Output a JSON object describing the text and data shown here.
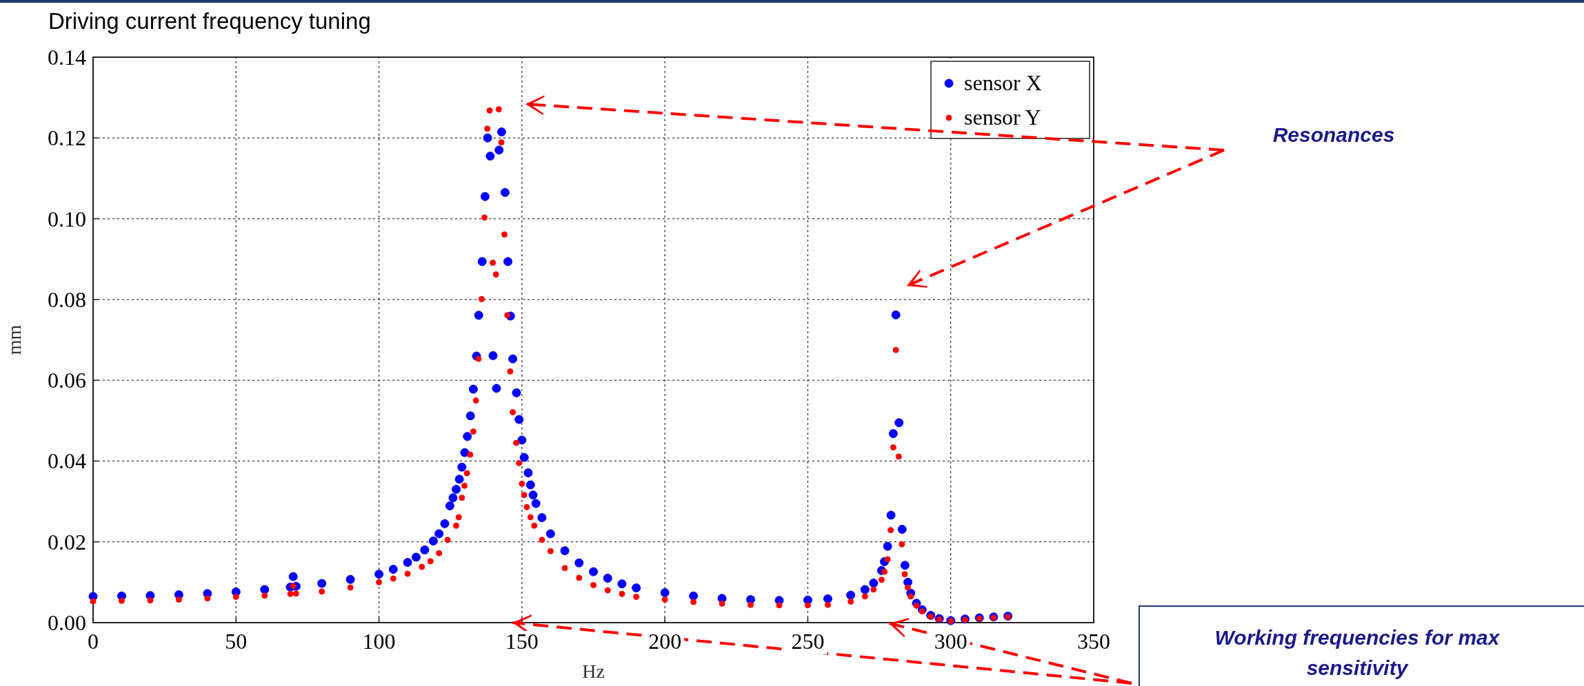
{
  "chart_data": {
    "type": "scatter",
    "title": "Driving current frequency tuning",
    "xlabel": "Hz",
    "ylabel": "mm",
    "xlim": [
      0,
      350
    ],
    "xticks": [
      0,
      50,
      100,
      150,
      200,
      250,
      300,
      350
    ],
    "ylim": [
      0,
      0.14
    ],
    "yticks": [
      {
        "value": 0,
        "label": "0.00"
      },
      {
        "value": 0.02,
        "label": "0.02"
      },
      {
        "value": 0.04,
        "label": "0.04"
      },
      {
        "value": 0.06,
        "label": "0.06"
      },
      {
        "value": 0.08,
        "label": "0.08"
      },
      {
        "value": 0.1,
        "label": "0.10"
      },
      {
        "value": 0.12,
        "label": "0.12"
      },
      {
        "value": 0.14,
        "label": "0.14"
      }
    ],
    "grid": true,
    "legend": "top right",
    "marker": "circle",
    "annotations": [
      "Resonances",
      "Working frequencies for max sensitivity"
    ],
    "series": [
      {
        "name": "sensor X",
        "color": "#0000ff",
        "x": [
          0,
          10,
          20,
          30,
          40,
          50,
          60,
          69,
          70,
          71,
          80,
          90,
          100,
          105,
          110,
          113,
          116,
          119,
          121,
          123,
          124.8,
          125.9,
          127,
          128.1,
          129,
          130,
          130.9,
          132,
          133,
          134.1,
          134.9,
          136.1,
          137.1,
          138,
          138.9,
          139.9,
          141.1,
          142,
          142.9,
          144.1,
          145.1,
          146,
          146.8,
          148.1,
          149,
          150,
          150.8,
          152.2,
          153,
          153.9,
          154.9,
          157,
          160,
          165,
          170,
          175,
          180,
          185,
          190,
          200,
          210,
          220,
          230,
          240,
          250,
          257,
          265,
          270,
          273,
          275.8,
          276.8,
          277.9,
          279.1,
          279.9,
          280.8,
          281.9,
          283,
          284,
          285,
          286,
          288,
          290,
          293,
          296,
          300,
          305,
          310,
          315,
          320
        ],
        "values": [
          0.0065,
          0.0066,
          0.0067,
          0.0069,
          0.0072,
          0.0076,
          0.0082,
          0.0088,
          0.0114,
          0.009,
          0.0097,
          0.0107,
          0.012,
          0.0132,
          0.0149,
          0.0162,
          0.018,
          0.0202,
          0.022,
          0.0245,
          0.0289,
          0.0309,
          0.033,
          0.0355,
          0.0385,
          0.0421,
          0.0461,
          0.0512,
          0.0578,
          0.066,
          0.0761,
          0.0894,
          0.1055,
          0.12,
          0.1155,
          0.0661,
          0.058,
          0.117,
          0.1215,
          0.1065,
          0.0894,
          0.0759,
          0.0653,
          0.0569,
          0.0503,
          0.0452,
          0.0409,
          0.0371,
          0.0341,
          0.0316,
          0.0295,
          0.026,
          0.022,
          0.0178,
          0.0148,
          0.0126,
          0.011,
          0.0096,
          0.0086,
          0.0074,
          0.0066,
          0.006,
          0.0057,
          0.0055,
          0.0056,
          0.0059,
          0.0068,
          0.0082,
          0.0098,
          0.0129,
          0.0151,
          0.0189,
          0.0266,
          0.0468,
          0.0762,
          0.0495,
          0.0231,
          0.0142,
          0.01,
          0.0073,
          0.0048,
          0.0032,
          0.0018,
          0.001,
          0.0005,
          0.0009,
          0.0012,
          0.0014,
          0.0016
        ]
      },
      {
        "name": "sensor Y",
        "color": "#ff0000",
        "x": [
          0,
          10,
          20,
          30,
          40,
          50,
          60,
          69,
          70,
          71,
          80,
          90,
          100,
          105,
          110,
          115,
          118,
          121,
          124,
          127,
          127.9,
          129,
          129.9,
          130.8,
          131.9,
          133,
          133.9,
          134.8,
          135.9,
          136.9,
          137.9,
          138.7,
          139.8,
          140.9,
          141.9,
          142.8,
          143.9,
          144.9,
          145.9,
          146.8,
          148,
          149,
          150,
          150.8,
          151.7,
          153,
          154.3,
          157,
          160,
          165,
          170,
          175,
          180,
          185,
          190,
          200,
          210,
          220,
          230,
          240,
          250,
          257,
          265,
          270,
          273,
          275.8,
          276.8,
          277.9,
          279,
          279.9,
          280.8,
          281.8,
          282.9,
          283.9,
          285,
          286,
          288,
          290,
          293,
          296,
          300,
          305,
          310,
          315,
          320
        ],
        "values": [
          0.0053,
          0.0054,
          0.0055,
          0.0057,
          0.006,
          0.0064,
          0.0067,
          0.0071,
          0.0091,
          0.0072,
          0.0077,
          0.0087,
          0.01,
          0.0109,
          0.0121,
          0.0138,
          0.0152,
          0.0172,
          0.0205,
          0.024,
          0.0261,
          0.0309,
          0.0339,
          0.037,
          0.0416,
          0.0473,
          0.055,
          0.0653,
          0.0801,
          0.1003,
          0.1223,
          0.1268,
          0.0891,
          0.0862,
          0.1271,
          0.1189,
          0.0961,
          0.0761,
          0.0622,
          0.0521,
          0.0445,
          0.0395,
          0.0344,
          0.0316,
          0.0286,
          0.0261,
          0.024,
          0.0205,
          0.0177,
          0.0135,
          0.0111,
          0.0093,
          0.008,
          0.0071,
          0.0064,
          0.0057,
          0.0051,
          0.0047,
          0.0044,
          0.0043,
          0.0043,
          0.0044,
          0.0052,
          0.0065,
          0.0082,
          0.0106,
          0.0126,
          0.0157,
          0.0229,
          0.0434,
          0.0675,
          0.0411,
          0.0194,
          0.012,
          0.0087,
          0.0065,
          0.0042,
          0.0028,
          0.0015,
          0.0008,
          0.0004,
          0.0007,
          0.001,
          0.0012,
          0.0014
        ]
      }
    ]
  }
}
